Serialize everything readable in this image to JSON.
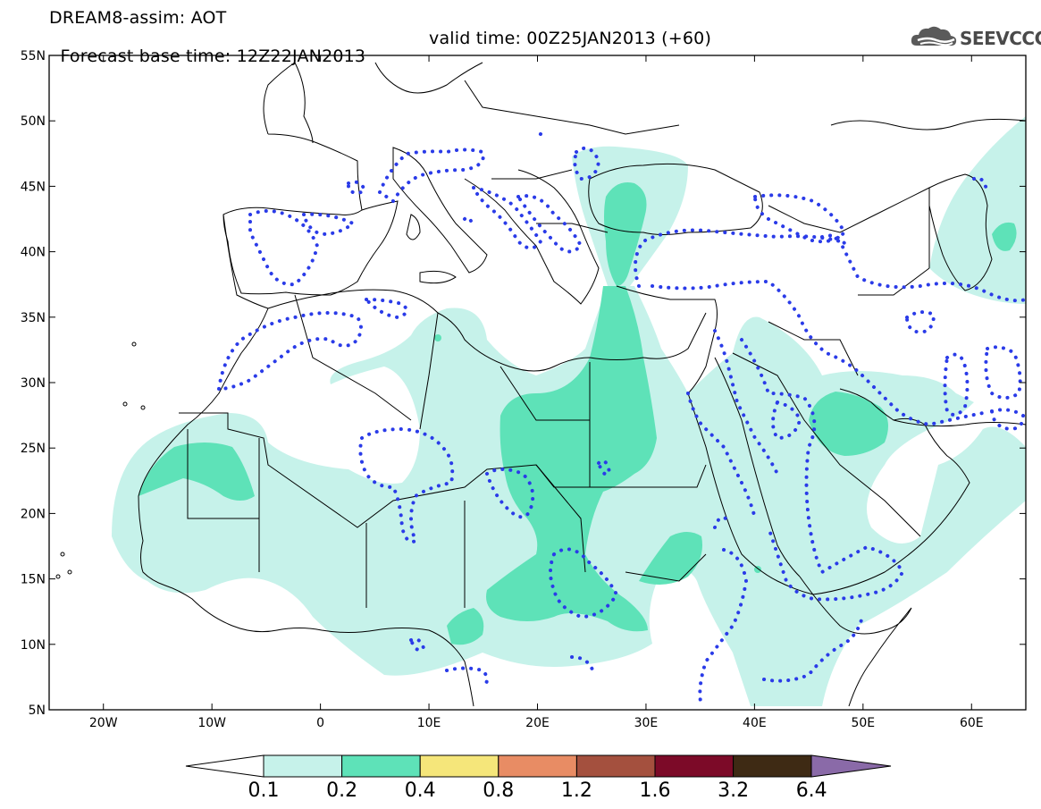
{
  "header": {
    "title": "DREAM8-assim: AOT",
    "base_time": "Forecast base time: 12Z22JAN2013",
    "valid_time": "valid time: 00Z25JAN2013 (+60)",
    "logo_text": "SEEVCCC"
  },
  "map": {
    "lon_range": [
      -25,
      65
    ],
    "lat_range": [
      5,
      55
    ],
    "lon_ticks": [
      "20W",
      "10W",
      "0",
      "10E",
      "20E",
      "30E",
      "40E",
      "50E",
      "60E"
    ],
    "lat_ticks": [
      "55N",
      "50N",
      "45N",
      "40N",
      "35N",
      "30N",
      "25N",
      "20N",
      "15N",
      "10N",
      "5N"
    ],
    "contour_color": "#2a3be8",
    "fill_level_1_color": "#c6f2ea",
    "fill_level_2_color": "#5ee2b8"
  },
  "colorbar": {
    "labels": [
      "0.1",
      "0.2",
      "0.4",
      "0.8",
      "1.2",
      "1.6",
      "3.2",
      "6.4"
    ],
    "colors": [
      "#c6f2ea",
      "#5ee2b8",
      "#f5e67a",
      "#e88c64",
      "#a4503e",
      "#7c0a28",
      "#3e2a14",
      "#8a6aa8"
    ]
  }
}
